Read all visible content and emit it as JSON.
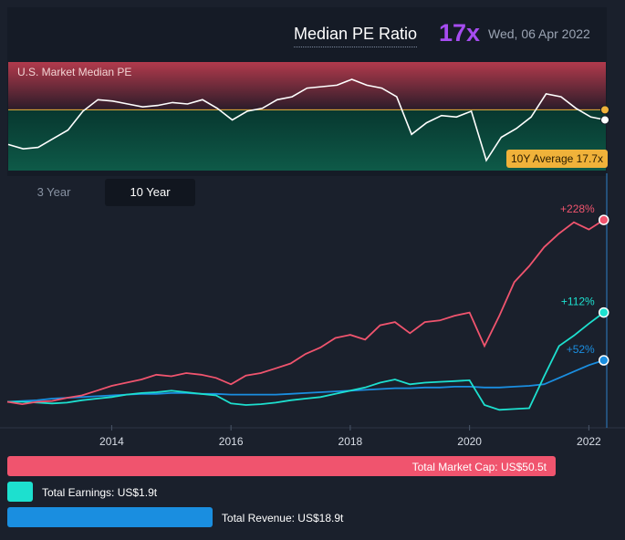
{
  "header": {
    "title": "Median PE Ratio",
    "value": "17x",
    "date": "Wed, 06 Apr 2022"
  },
  "pe_panel": {
    "label": "U.S. Market Median PE",
    "average_badge": "10Y Average 17.7x"
  },
  "tabs": [
    {
      "label": "3 Year",
      "active": false
    },
    {
      "label": "10 Year",
      "active": true
    }
  ],
  "colors": {
    "market_cap": "#f0546e",
    "earnings": "#1de0cf",
    "revenue": "#1a8ee0",
    "pe_line": "#ffffff",
    "average": "#f0b23a",
    "accent_value": "#a64cf0"
  },
  "bars": {
    "market_cap": {
      "label": "Total Market Cap: US$50.5t",
      "value": 50.5
    },
    "earnings": {
      "label": "Total Earnings: US$1.9t",
      "value": 1.9
    },
    "revenue": {
      "label": "Total Revenue: US$18.9t",
      "value": 18.9
    }
  },
  "chart_data": [
    {
      "type": "line",
      "title": "U.S. Market Median PE",
      "average": 17.7,
      "ylim": [
        13.5,
        21
      ],
      "x": [
        2012.25,
        2012.5,
        2012.75,
        2013.0,
        2013.25,
        2013.5,
        2013.75,
        2014.0,
        2014.25,
        2014.5,
        2014.75,
        2015.0,
        2015.25,
        2015.5,
        2015.75,
        2016.0,
        2016.25,
        2016.5,
        2016.75,
        2017.0,
        2017.25,
        2017.5,
        2017.75,
        2018.0,
        2018.25,
        2018.5,
        2018.75,
        2019.0,
        2019.25,
        2019.5,
        2019.75,
        2020.0,
        2020.25,
        2020.5,
        2020.75,
        2021.0,
        2021.25,
        2021.5,
        2021.75,
        2022.0,
        2022.25
      ],
      "values": [
        15.3,
        15.0,
        15.1,
        15.7,
        16.3,
        17.6,
        18.4,
        18.3,
        18.1,
        17.9,
        18.0,
        18.2,
        18.1,
        18.4,
        17.8,
        17.0,
        17.6,
        17.8,
        18.4,
        18.6,
        19.2,
        19.3,
        19.4,
        19.8,
        19.4,
        19.2,
        18.6,
        16.0,
        16.8,
        17.3,
        17.2,
        17.6,
        14.2,
        15.8,
        16.4,
        17.2,
        18.8,
        18.6,
        17.8,
        17.2,
        17.0
      ]
    },
    {
      "type": "line",
      "x_ticks": [
        "2014",
        "2016",
        "2018",
        "2020",
        "2022"
      ],
      "xlim": [
        2012.25,
        2022.3
      ],
      "series": [
        {
          "name": "Total Market Cap",
          "end_label": "+228%",
          "x": [
            2012.25,
            2012.5,
            2012.75,
            2013.0,
            2013.25,
            2013.5,
            2013.75,
            2014.0,
            2014.25,
            2014.5,
            2014.75,
            2015.0,
            2015.25,
            2015.5,
            2015.75,
            2016.0,
            2016.25,
            2016.5,
            2016.75,
            2017.0,
            2017.25,
            2017.5,
            2017.75,
            2018.0,
            2018.25,
            2018.5,
            2018.75,
            2019.0,
            2019.25,
            2019.5,
            2019.75,
            2020.0,
            2020.25,
            2020.5,
            2020.75,
            2021.0,
            2021.25,
            2021.5,
            2021.75,
            2022.0,
            2022.25
          ],
          "values": [
            0,
            -3,
            0,
            1,
            5,
            8,
            14,
            20,
            24,
            28,
            34,
            32,
            36,
            34,
            30,
            22,
            33,
            36,
            42,
            48,
            60,
            68,
            80,
            84,
            78,
            96,
            100,
            86,
            100,
            102,
            108,
            112,
            70,
            108,
            150,
            170,
            194,
            211,
            225,
            216,
            228
          ]
        },
        {
          "name": "Total Earnings",
          "end_label": "+112%",
          "x": [
            2012.25,
            2012.5,
            2012.75,
            2013.0,
            2013.25,
            2013.5,
            2013.75,
            2014.0,
            2014.25,
            2014.5,
            2014.75,
            2015.0,
            2015.25,
            2015.5,
            2015.75,
            2016.0,
            2016.25,
            2016.5,
            2016.75,
            2017.0,
            2017.25,
            2017.5,
            2017.75,
            2018.0,
            2018.25,
            2018.5,
            2018.75,
            2019.0,
            2019.25,
            2019.5,
            2019.75,
            2020.0,
            2020.25,
            2020.5,
            2020.75,
            2021.0,
            2021.25,
            2021.5,
            2021.75,
            2022.0,
            2022.25
          ],
          "values": [
            0,
            0,
            -1,
            -2,
            -1,
            2,
            4,
            6,
            9,
            11,
            12,
            14,
            12,
            10,
            8,
            -2,
            -4,
            -3,
            -1,
            2,
            4,
            6,
            10,
            14,
            18,
            24,
            28,
            22,
            24,
            25,
            26,
            27,
            -4,
            -10,
            -9,
            -8,
            32,
            70,
            83,
            98,
            112
          ]
        },
        {
          "name": "Total Revenue",
          "end_label": "+52%",
          "x": [
            2012.25,
            2012.5,
            2012.75,
            2013.0,
            2013.25,
            2013.5,
            2013.75,
            2014.0,
            2014.25,
            2014.5,
            2014.75,
            2015.0,
            2015.25,
            2015.5,
            2015.75,
            2016.0,
            2016.25,
            2016.5,
            2016.75,
            2017.0,
            2017.25,
            2017.5,
            2017.75,
            2018.0,
            2018.25,
            2018.5,
            2018.75,
            2019.0,
            2019.25,
            2019.5,
            2019.75,
            2020.0,
            2020.25,
            2020.5,
            2020.75,
            2021.0,
            2021.25,
            2021.5,
            2021.75,
            2022.0,
            2022.25
          ],
          "values": [
            0,
            1,
            2,
            4,
            5,
            6,
            7,
            8,
            9,
            10,
            10,
            11,
            11,
            10,
            10,
            9,
            9,
            9,
            9,
            10,
            11,
            12,
            13,
            14,
            15,
            16,
            17,
            17,
            18,
            18,
            19,
            19,
            18,
            18,
            19,
            20,
            22,
            30,
            38,
            46,
            52
          ]
        }
      ]
    }
  ]
}
